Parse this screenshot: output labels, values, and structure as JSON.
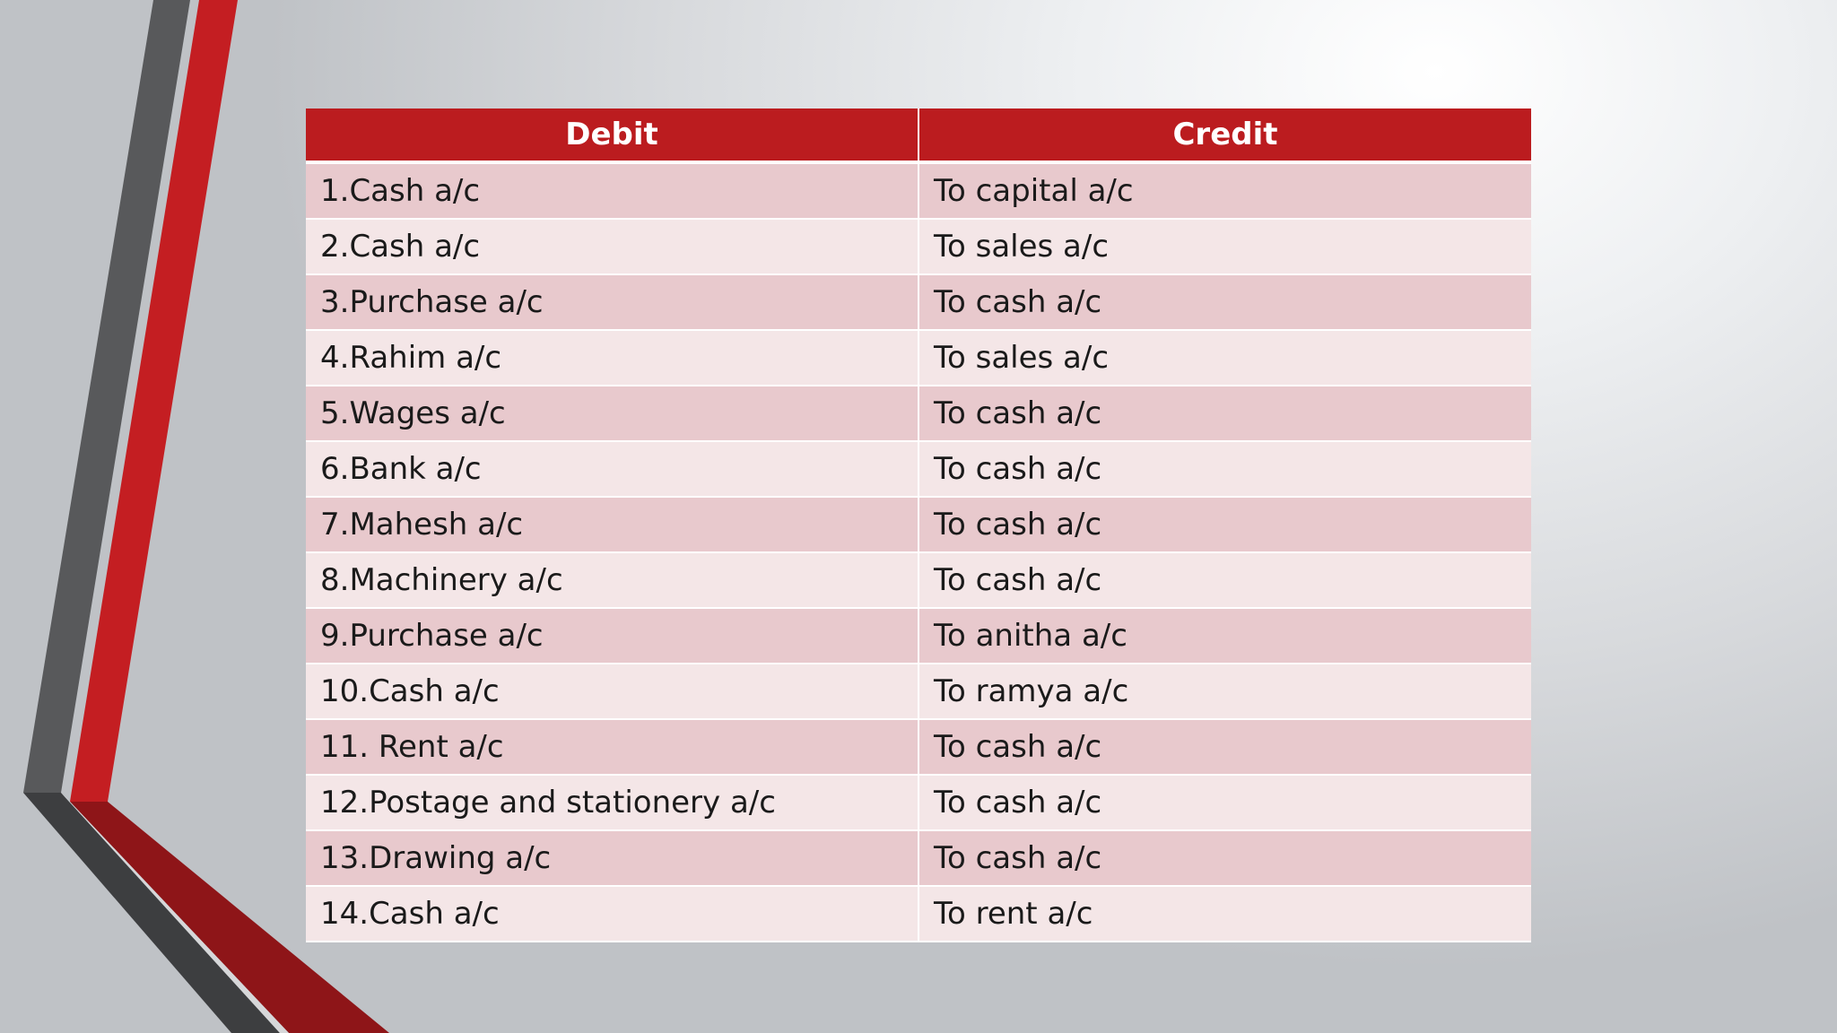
{
  "table": {
    "headers": [
      "Debit",
      "Credit"
    ],
    "rows": [
      [
        "1.Cash a/c",
        "To capital a/c"
      ],
      [
        "2.Cash a/c",
        "To sales a/c"
      ],
      [
        "3.Purchase a/c",
        "To cash a/c"
      ],
      [
        "4.Rahim a/c",
        "To sales a/c"
      ],
      [
        "5.Wages a/c",
        "To cash a/c"
      ],
      [
        "6.Bank a/c",
        "To cash a/c"
      ],
      [
        "7.Mahesh a/c",
        "To cash a/c"
      ],
      [
        "8.Machinery a/c",
        "To cash a/c"
      ],
      [
        "9.Purchase a/c",
        "To anitha a/c"
      ],
      [
        "10.Cash a/c",
        "To ramya a/c"
      ],
      [
        "11. Rent a/c",
        "To cash a/c"
      ],
      [
        "12.Postage and stationery a/c",
        "To cash a/c"
      ],
      [
        "13.Drawing a/c",
        "To cash a/c"
      ],
      [
        "14.Cash a/c",
        "To rent a/c"
      ]
    ]
  },
  "colors": {
    "header_bg": "#bb1c1f",
    "row_dark": "#e8c9cd",
    "row_light": "#f4e6e7",
    "accent_red": "#c41e22",
    "accent_gray": "#5a5b5d"
  }
}
